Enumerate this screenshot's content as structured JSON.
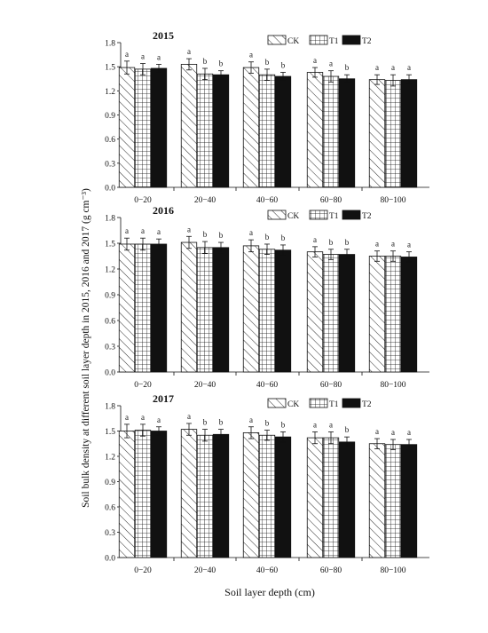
{
  "figure": {
    "ylabel": "Soil bulk density at different soil layer depth in 2015, 2016 and 2017 (g cm⁻³)",
    "xlabel": "Soil layer depth (cm)"
  },
  "legend": [
    {
      "name": "CK",
      "pattern": "diagonal-hatch"
    },
    {
      "name": "T1",
      "pattern": "grid-hatch"
    },
    {
      "name": "T2",
      "pattern": "solid-black"
    }
  ],
  "chart_data": [
    {
      "type": "bar",
      "title": "2015",
      "categories": [
        "0−20",
        "20−40",
        "40−60",
        "60−80",
        "80−100"
      ],
      "ylim": [
        0,
        1.8
      ],
      "yticks": [
        "0.0",
        "0.3",
        "0.6",
        "0.9",
        "1.2",
        "1.5",
        "1.8"
      ],
      "legend_position": "top-right",
      "series": [
        {
          "name": "CK",
          "values": [
            1.49,
            1.53,
            1.49,
            1.43,
            1.34
          ],
          "errors": [
            0.08,
            0.07,
            0.07,
            0.06,
            0.06
          ],
          "labels": [
            "a",
            "a",
            "a",
            "a",
            "a"
          ]
        },
        {
          "name": "T1",
          "values": [
            1.47,
            1.41,
            1.4,
            1.38,
            1.33
          ],
          "errors": [
            0.07,
            0.07,
            0.07,
            0.07,
            0.07
          ],
          "labels": [
            "a",
            "b",
            "b",
            "a",
            "a"
          ]
        },
        {
          "name": "T2",
          "values": [
            1.48,
            1.4,
            1.38,
            1.35,
            1.34
          ],
          "errors": [
            0.05,
            0.05,
            0.05,
            0.05,
            0.06
          ],
          "labels": [
            "a",
            "b",
            "b",
            "b",
            "a"
          ]
        }
      ]
    },
    {
      "type": "bar",
      "title": "2016",
      "categories": [
        "0−20",
        "20−40",
        "40−60",
        "60−80",
        "80−100"
      ],
      "ylim": [
        0,
        1.8
      ],
      "yticks": [
        "0.0",
        "0.3",
        "0.6",
        "0.9",
        "1.2",
        "1.5",
        "1.8"
      ],
      "legend_position": "top-right",
      "series": [
        {
          "name": "CK",
          "values": [
            1.49,
            1.51,
            1.47,
            1.4,
            1.35
          ],
          "errors": [
            0.07,
            0.07,
            0.07,
            0.06,
            0.06
          ],
          "labels": [
            "a",
            "a",
            "a",
            "a",
            "a"
          ]
        },
        {
          "name": "T1",
          "values": [
            1.49,
            1.45,
            1.43,
            1.37,
            1.35
          ],
          "errors": [
            0.07,
            0.07,
            0.06,
            0.06,
            0.06
          ],
          "labels": [
            "a",
            "b",
            "b",
            "b",
            "a"
          ]
        },
        {
          "name": "T2",
          "values": [
            1.49,
            1.45,
            1.42,
            1.37,
            1.34
          ],
          "errors": [
            0.06,
            0.06,
            0.06,
            0.06,
            0.06
          ],
          "labels": [
            "a",
            "b",
            "b",
            "b",
            "a"
          ]
        }
      ]
    },
    {
      "type": "bar",
      "title": "2017",
      "categories": [
        "0−20",
        "20−40",
        "40−60",
        "60−80",
        "80−100"
      ],
      "ylim": [
        0,
        1.8
      ],
      "yticks": [
        "0.0",
        "0.3",
        "0.6",
        "0.9",
        "1.2",
        "1.5",
        "1.8"
      ],
      "legend_position": "top-right",
      "series": [
        {
          "name": "CK",
          "values": [
            1.5,
            1.52,
            1.48,
            1.42,
            1.35
          ],
          "errors": [
            0.08,
            0.07,
            0.07,
            0.07,
            0.06
          ],
          "labels": [
            "a",
            "a",
            "a",
            "a",
            "a"
          ]
        },
        {
          "name": "T1",
          "values": [
            1.51,
            1.45,
            1.45,
            1.42,
            1.34
          ],
          "errors": [
            0.07,
            0.07,
            0.06,
            0.07,
            0.06
          ],
          "labels": [
            "a",
            "b",
            "b",
            "a",
            "a"
          ]
        },
        {
          "name": "T2",
          "values": [
            1.5,
            1.46,
            1.43,
            1.37,
            1.34
          ],
          "errors": [
            0.05,
            0.06,
            0.06,
            0.06,
            0.06
          ],
          "labels": [
            "a",
            "b",
            "b",
            "b",
            "a"
          ]
        }
      ]
    }
  ]
}
